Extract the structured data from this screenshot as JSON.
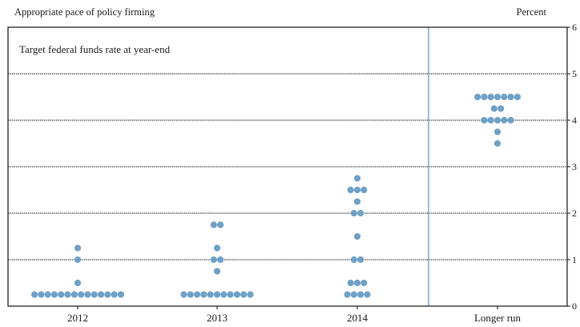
{
  "header": {
    "supertitle": "Appropriate pace of policy firming",
    "unit": "Percent"
  },
  "chart_data": {
    "type": "scatter",
    "title": "Target federal funds rate at year-end",
    "xlabel": "",
    "ylabel": "",
    "categories": [
      "2012",
      "2013",
      "2014",
      "Longer run"
    ],
    "ylim": [
      0,
      6
    ],
    "yticks": [
      0,
      1,
      2,
      3,
      4,
      5,
      6
    ],
    "grid": true,
    "separator_between": [
      "2014",
      "Longer run"
    ],
    "dot_color": "#6fa0c6",
    "separator_color": "#4d8fc7",
    "points": [
      {
        "category": "2012",
        "y": 0.25,
        "count": 14
      },
      {
        "category": "2012",
        "y": 0.5,
        "count": 1
      },
      {
        "category": "2012",
        "y": 1.0,
        "count": 1
      },
      {
        "category": "2012",
        "y": 1.25,
        "count": 1
      },
      {
        "category": "2013",
        "y": 0.25,
        "count": 11
      },
      {
        "category": "2013",
        "y": 0.75,
        "count": 1
      },
      {
        "category": "2013",
        "y": 1.0,
        "count": 2
      },
      {
        "category": "2013",
        "y": 1.25,
        "count": 1
      },
      {
        "category": "2013",
        "y": 1.75,
        "count": 2
      },
      {
        "category": "2014",
        "y": 0.25,
        "count": 4
      },
      {
        "category": "2014",
        "y": 0.5,
        "count": 3
      },
      {
        "category": "2014",
        "y": 1.0,
        "count": 2
      },
      {
        "category": "2014",
        "y": 1.5,
        "count": 1
      },
      {
        "category": "2014",
        "y": 2.0,
        "count": 2
      },
      {
        "category": "2014",
        "y": 2.25,
        "count": 1
      },
      {
        "category": "2014",
        "y": 2.5,
        "count": 3
      },
      {
        "category": "2014",
        "y": 2.75,
        "count": 1
      },
      {
        "category": "Longer run",
        "y": 3.5,
        "count": 1
      },
      {
        "category": "Longer run",
        "y": 3.75,
        "count": 1
      },
      {
        "category": "Longer run",
        "y": 4.0,
        "count": 5
      },
      {
        "category": "Longer run",
        "y": 4.25,
        "count": 2
      },
      {
        "category": "Longer run",
        "y": 4.5,
        "count": 7
      }
    ]
  }
}
